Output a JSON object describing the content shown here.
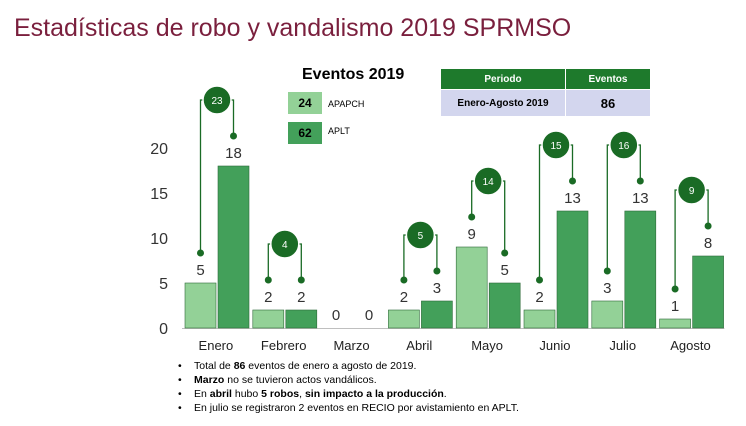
{
  "title": "Estadísticas de robo y vandalismo 2019 SPRMSO",
  "legend": {
    "title": "Eventos 2019",
    "items": [
      {
        "value": "24",
        "label": "APAPCH",
        "color": "#93d197"
      },
      {
        "value": "62",
        "label": "APLT",
        "color": "#43a05a"
      }
    ]
  },
  "summary_table": {
    "headers": [
      "Periodo",
      "Eventos"
    ],
    "row": [
      "Enero-Agosto 2019",
      "86"
    ]
  },
  "chart_data": {
    "type": "bar",
    "categories": [
      "Enero",
      "Febrero",
      "Marzo",
      "Abril",
      "Mayo",
      "Junio",
      "Julio",
      "Agosto"
    ],
    "series": [
      {
        "name": "APAPCH",
        "values": [
          5,
          2,
          0,
          2,
          9,
          2,
          3,
          1
        ],
        "color": "#93d197"
      },
      {
        "name": "APLT",
        "values": [
          18,
          2,
          0,
          3,
          5,
          13,
          13,
          8
        ],
        "color": "#43a05a"
      }
    ],
    "totals": [
      "23",
      "4",
      "",
      "5",
      "14",
      "15",
      "16",
      "9"
    ],
    "ylim": [
      0,
      20
    ],
    "yticks": [
      "0",
      "5",
      "10",
      "15",
      "20"
    ],
    "grid": false
  },
  "bullets": [
    {
      "parts": [
        {
          "t": "Total de ",
          "b": false
        },
        {
          "t": "86",
          "b": true
        },
        {
          "t": " eventos de enero a agosto de 2019.",
          "b": false
        }
      ]
    },
    {
      "parts": [
        {
          "t": "Marzo",
          "b": true
        },
        {
          "t": " no se tuvieron actos vandálicos.",
          "b": false
        }
      ]
    },
    {
      "parts": [
        {
          "t": "En ",
          "b": false
        },
        {
          "t": "abril",
          "b": true
        },
        {
          "t": " hubo ",
          "b": false
        },
        {
          "t": "5 robos",
          "b": true
        },
        {
          "t": ", ",
          "b": false
        },
        {
          "t": "sin impacto a la producción",
          "b": true
        },
        {
          "t": ".",
          "b": false
        }
      ]
    },
    {
      "parts": [
        {
          "t": "En julio se registraron 2 eventos en RECIO por avistamiento en APLT.",
          "b": false
        }
      ]
    }
  ]
}
